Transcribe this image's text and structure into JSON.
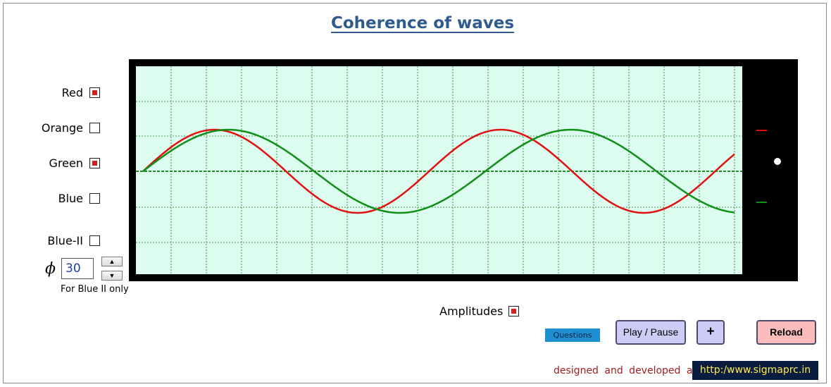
{
  "title": "Coherence of waves",
  "checkboxes": [
    {
      "label": "Red",
      "checked": true
    },
    {
      "label": "Orange",
      "checked": false
    },
    {
      "label": "Green",
      "checked": true
    },
    {
      "label": "Blue",
      "checked": false
    },
    {
      "label": "Blue-II",
      "checked": false
    }
  ],
  "phase": {
    "symbol": "ϕ",
    "value": "30",
    "up_label": "▲",
    "down_label": "▼",
    "note": "For Blue II only"
  },
  "amplitudes": {
    "label": "Amplitudes",
    "checked": true
  },
  "buttons": {
    "questions": "Questions",
    "play_pause": "Play / Pause",
    "plus": "+",
    "reload": "Reload"
  },
  "credit": {
    "text": "designed and developed at",
    "link": "http:/www.sigmaprc.in"
  },
  "colors": {
    "red_wave": "#e01010",
    "green_wave": "#0f8f18",
    "screen_bg": "#dcfcef",
    "grid": "#1e7a1e"
  },
  "waves": [
    {
      "name": "red",
      "color": "#e01010",
      "amplitude": 1.0,
      "cycles": 2.07,
      "phase": 0
    },
    {
      "name": "green",
      "color": "#0f8f18",
      "amplitude": 1.0,
      "cycles": 1.73,
      "phase": 0
    }
  ]
}
